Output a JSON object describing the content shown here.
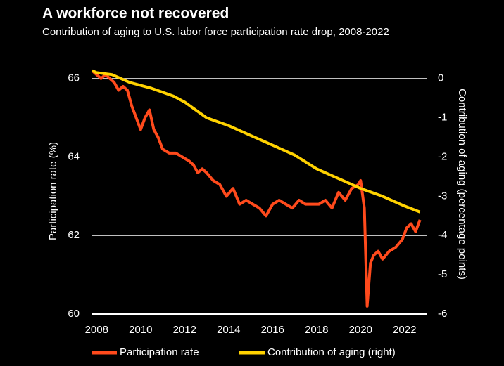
{
  "chart_data": {
    "type": "line",
    "title": "A workforce not recovered",
    "subtitle": "Contribution of aging to U.S. labor force participation rate drop, 2008-2022",
    "y_label": "Participation rate (%)",
    "y2_label": "Contribution of aging (percentage points)",
    "xlim": [
      2007.8,
      2023
    ],
    "xticks": [
      2008,
      2010,
      2012,
      2014,
      2016,
      2018,
      2020,
      2022
    ],
    "ylim": [
      60,
      66.3
    ],
    "yticks": [
      60,
      62,
      64,
      66
    ],
    "y2lim": [
      -6,
      0.3
    ],
    "y2ticks": [
      -6,
      -5,
      -4,
      -3,
      -2,
      -1,
      0
    ],
    "grid": true,
    "legend": "bottom",
    "series": [
      {
        "name": "Participation rate",
        "color": "#ff4a1c",
        "x": [
          2007.8,
          2008.0,
          2008.2,
          2008.4,
          2008.6,
          2008.8,
          2009.0,
          2009.2,
          2009.4,
          2009.6,
          2009.8,
          2010.0,
          2010.2,
          2010.4,
          2010.6,
          2010.8,
          2011.0,
          2011.3,
          2011.6,
          2011.9,
          2012.2,
          2012.4,
          2012.6,
          2012.8,
          2013.0,
          2013.3,
          2013.6,
          2013.9,
          2014.2,
          2014.5,
          2014.8,
          2015.1,
          2015.4,
          2015.7,
          2016.0,
          2016.3,
          2016.6,
          2016.9,
          2017.2,
          2017.5,
          2017.8,
          2018.1,
          2018.4,
          2018.7,
          2019.0,
          2019.3,
          2019.6,
          2019.9,
          2020.0,
          2020.17,
          2020.3,
          2020.45,
          2020.6,
          2020.8,
          2021.0,
          2021.3,
          2021.6,
          2021.9,
          2022.1,
          2022.3,
          2022.5,
          2022.7
        ],
        "values": [
          66.2,
          66.1,
          66.0,
          66.1,
          66.0,
          65.9,
          65.7,
          65.8,
          65.7,
          65.3,
          65.0,
          64.7,
          65.0,
          65.2,
          64.7,
          64.5,
          64.2,
          64.1,
          64.1,
          64.0,
          63.9,
          63.8,
          63.6,
          63.7,
          63.6,
          63.4,
          63.3,
          63.0,
          63.2,
          62.8,
          62.9,
          62.8,
          62.7,
          62.5,
          62.8,
          62.9,
          62.8,
          62.7,
          62.9,
          62.8,
          62.8,
          62.8,
          62.9,
          62.7,
          63.1,
          62.9,
          63.2,
          63.3,
          63.4,
          62.7,
          60.2,
          61.3,
          61.5,
          61.6,
          61.4,
          61.6,
          61.7,
          61.9,
          62.2,
          62.3,
          62.1,
          62.4
        ]
      },
      {
        "name": "Contribution of aging (right)",
        "color": "#ffd200",
        "axis": "y2",
        "x": [
          2007.8,
          2008.0,
          2008.7,
          2009.5,
          2010.5,
          2011.5,
          2012.0,
          2012.5,
          2013.0,
          2013.5,
          2014.0,
          2015.0,
          2016.0,
          2017.0,
          2018.0,
          2019.0,
          2020.0,
          2021.0,
          2022.0,
          2022.7
        ],
        "values": [
          0.2,
          0.15,
          0.1,
          -0.1,
          -0.25,
          -0.45,
          -0.6,
          -0.8,
          -1.0,
          -1.1,
          -1.2,
          -1.45,
          -1.7,
          -1.95,
          -2.3,
          -2.55,
          -2.8,
          -3.0,
          -3.25,
          -3.4
        ]
      }
    ]
  }
}
